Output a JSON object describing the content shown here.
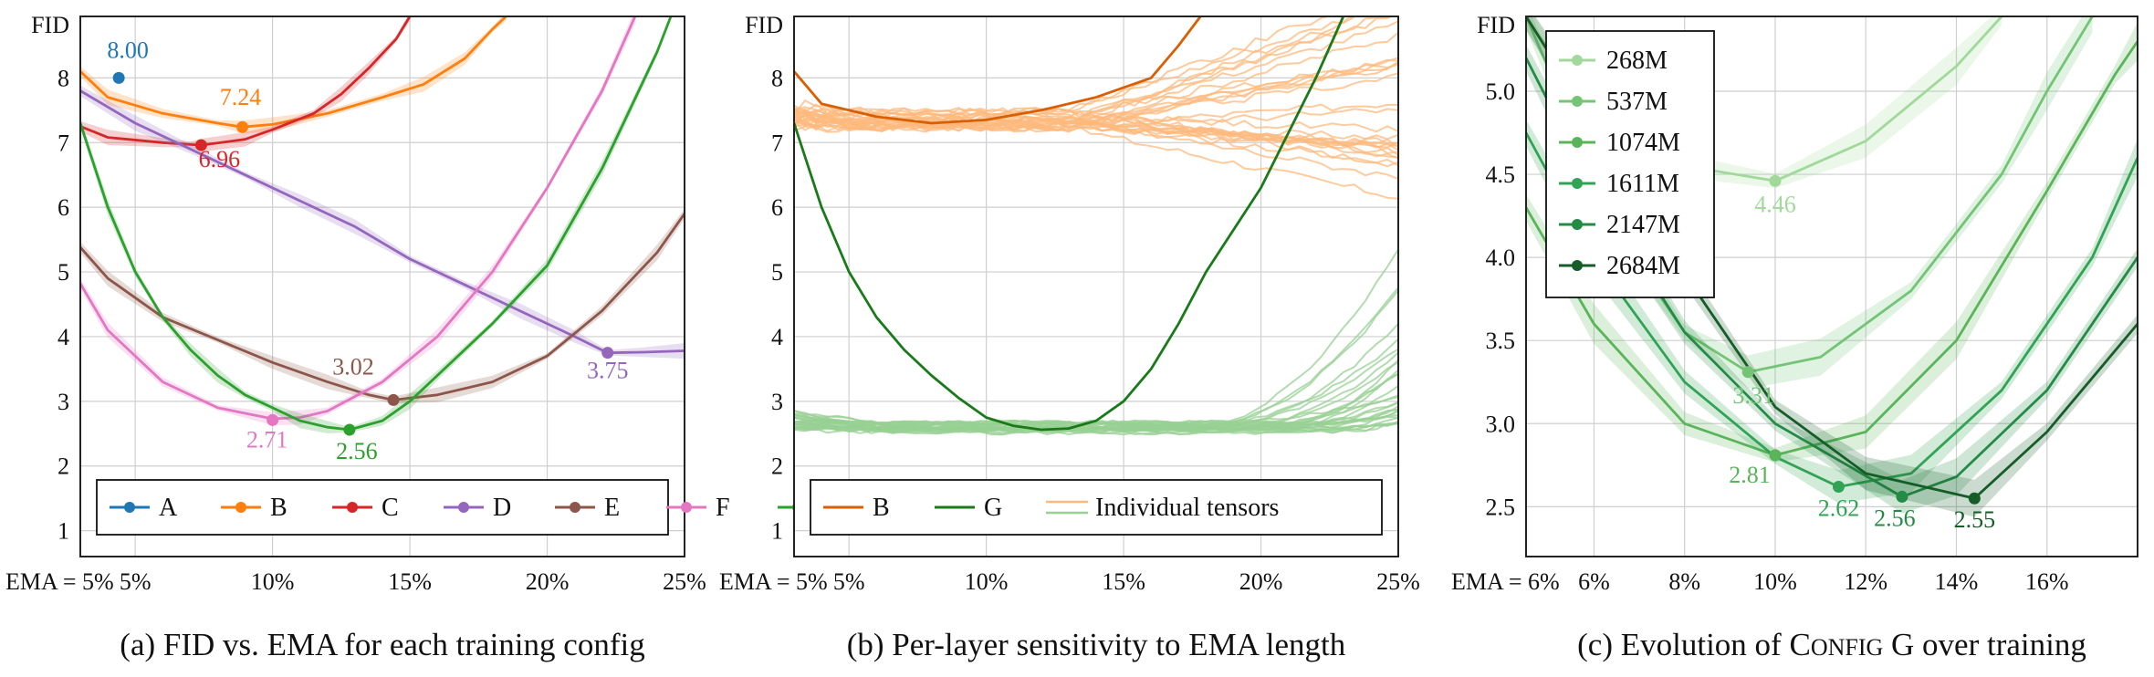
{
  "chart_data": [
    {
      "type": "line",
      "caption": "(a) FID vs. EMA for each training config",
      "ylabel": "FID",
      "x_start_label": "EMA = 5%",
      "xlim": [
        0.03,
        0.25
      ],
      "ylim": [
        0.6,
        8.95
      ],
      "xticks": [
        {
          "v": 0.05,
          "label": "5%"
        },
        {
          "v": 0.1,
          "label": "10%"
        },
        {
          "v": 0.15,
          "label": "15%"
        },
        {
          "v": 0.2,
          "label": "20%"
        },
        {
          "v": 0.25,
          "label": "25%"
        }
      ],
      "yticks": [
        {
          "v": 1,
          "label": "1"
        },
        {
          "v": 2,
          "label": "2"
        },
        {
          "v": 3,
          "label": "3"
        },
        {
          "v": 4,
          "label": "4"
        },
        {
          "v": 5,
          "label": "5"
        },
        {
          "v": 6,
          "label": "6"
        },
        {
          "v": 7,
          "label": "7"
        },
        {
          "v": 8,
          "label": "8"
        }
      ],
      "grid": true,
      "legend_position": "bottom",
      "legend_layout": "row",
      "series": [
        {
          "name": "A",
          "color": "#1f77b4",
          "band": false,
          "points": [],
          "min": {
            "x": 0.044,
            "y": 8.0,
            "label": "8.00",
            "label_dx": 10,
            "label_dy": -22
          }
        },
        {
          "name": "B",
          "color": "#ff7f0e",
          "band": true,
          "points": [
            [
              0.03,
              8.1
            ],
            [
              0.04,
              7.7
            ],
            [
              0.06,
              7.45
            ],
            [
              0.08,
              7.3
            ],
            [
              0.089,
              7.24
            ],
            [
              0.1,
              7.28
            ],
            [
              0.12,
              7.45
            ],
            [
              0.14,
              7.7
            ],
            [
              0.155,
              7.9
            ],
            [
              0.17,
              8.3
            ],
            [
              0.18,
              8.75
            ],
            [
              0.185,
              8.95
            ]
          ],
          "min": {
            "x": 0.089,
            "y": 7.24,
            "label": "7.24",
            "label_dx": -2,
            "label_dy": -24
          }
        },
        {
          "name": "C",
          "color": "#d62728",
          "band": true,
          "points": [
            [
              0.03,
              7.25
            ],
            [
              0.04,
              7.08
            ],
            [
              0.06,
              7.0
            ],
            [
              0.07,
              6.97
            ],
            [
              0.074,
              6.96
            ],
            [
              0.09,
              7.05
            ],
            [
              0.1,
              7.2
            ],
            [
              0.115,
              7.45
            ],
            [
              0.125,
              7.75
            ],
            [
              0.135,
              8.15
            ],
            [
              0.145,
              8.6
            ],
            [
              0.15,
              8.95
            ]
          ],
          "min": {
            "x": 0.074,
            "y": 6.96,
            "label": "6.96",
            "label_dx": 20,
            "label_dy": 24
          }
        },
        {
          "name": "D",
          "color": "#9467bd",
          "band": true,
          "points": [
            [
              0.03,
              7.8
            ],
            [
              0.05,
              7.3
            ],
            [
              0.07,
              6.9
            ],
            [
              0.09,
              6.5
            ],
            [
              0.11,
              6.1
            ],
            [
              0.13,
              5.7
            ],
            [
              0.15,
              5.2
            ],
            [
              0.17,
              4.8
            ],
            [
              0.19,
              4.4
            ],
            [
              0.21,
              4.0
            ],
            [
              0.222,
              3.75
            ],
            [
              0.235,
              3.76
            ],
            [
              0.25,
              3.78
            ]
          ],
          "min": {
            "x": 0.222,
            "y": 3.75,
            "label": "3.75",
            "label_dx": 0,
            "label_dy": 28
          }
        },
        {
          "name": "E",
          "color": "#8c564b",
          "band": true,
          "points": [
            [
              0.03,
              5.38
            ],
            [
              0.04,
              4.9
            ],
            [
              0.06,
              4.3
            ],
            [
              0.08,
              3.95
            ],
            [
              0.1,
              3.6
            ],
            [
              0.12,
              3.3
            ],
            [
              0.135,
              3.1
            ],
            [
              0.144,
              3.02
            ],
            [
              0.16,
              3.1
            ],
            [
              0.18,
              3.3
            ],
            [
              0.2,
              3.7
            ],
            [
              0.22,
              4.4
            ],
            [
              0.24,
              5.3
            ],
            [
              0.25,
              5.9
            ]
          ],
          "min": {
            "x": 0.144,
            "y": 3.02,
            "label": "3.02",
            "label_dx": -44,
            "label_dy": -28
          }
        },
        {
          "name": "F",
          "color": "#e377c2",
          "band": true,
          "points": [
            [
              0.03,
              4.82
            ],
            [
              0.04,
              4.1
            ],
            [
              0.06,
              3.3
            ],
            [
              0.08,
              2.9
            ],
            [
              0.1,
              2.73
            ],
            [
              0.11,
              2.75
            ],
            [
              0.12,
              2.85
            ],
            [
              0.14,
              3.3
            ],
            [
              0.16,
              4.0
            ],
            [
              0.18,
              5.0
            ],
            [
              0.2,
              6.3
            ],
            [
              0.22,
              7.8
            ],
            [
              0.232,
              8.95
            ]
          ],
          "min": {
            "x": 0.1,
            "y": 2.71,
            "label": "2.71",
            "label_dx": -6,
            "label_dy": 30
          }
        },
        {
          "name": "G",
          "color": "#2ca02c",
          "band": true,
          "points": [
            [
              0.03,
              7.3
            ],
            [
              0.04,
              6.0
            ],
            [
              0.05,
              5.0
            ],
            [
              0.06,
              4.3
            ],
            [
              0.07,
              3.8
            ],
            [
              0.08,
              3.4
            ],
            [
              0.09,
              3.1
            ],
            [
              0.1,
              2.9
            ],
            [
              0.11,
              2.7
            ],
            [
              0.12,
              2.6
            ],
            [
              0.128,
              2.56
            ],
            [
              0.14,
              2.7
            ],
            [
              0.15,
              3.0
            ],
            [
              0.16,
              3.4
            ],
            [
              0.18,
              4.2
            ],
            [
              0.2,
              5.1
            ],
            [
              0.22,
              6.6
            ],
            [
              0.24,
              8.4
            ],
            [
              0.245,
              8.95
            ]
          ],
          "min": {
            "x": 0.128,
            "y": 2.56,
            "label": "2.56",
            "label_dx": 8,
            "label_dy": 32
          }
        }
      ]
    },
    {
      "type": "line",
      "caption": "(b) Per-layer sensitivity to EMA length",
      "ylabel": "FID",
      "x_start_label": "EMA = 5%",
      "xlim": [
        0.03,
        0.25
      ],
      "ylim": [
        0.6,
        8.95
      ],
      "xticks": [
        {
          "v": 0.05,
          "label": "5%"
        },
        {
          "v": 0.1,
          "label": "10%"
        },
        {
          "v": 0.15,
          "label": "15%"
        },
        {
          "v": 0.2,
          "label": "20%"
        },
        {
          "v": 0.25,
          "label": "25%"
        }
      ],
      "yticks": [
        {
          "v": 1,
          "label": "1"
        },
        {
          "v": 2,
          "label": "2"
        },
        {
          "v": 3,
          "label": "3"
        },
        {
          "v": 4,
          "label": "4"
        },
        {
          "v": 5,
          "label": "5"
        },
        {
          "v": 6,
          "label": "6"
        },
        {
          "v": 7,
          "label": "7"
        },
        {
          "v": 8,
          "label": "8"
        }
      ],
      "grid": true,
      "legend_position": "bottom",
      "legend_layout": "row",
      "legend": [
        {
          "name": "B",
          "type": "line",
          "color": "#d95f02"
        },
        {
          "name": "G",
          "type": "line",
          "color": "#1a7a1a"
        },
        {
          "name": "Individual tensors",
          "type": "double",
          "colors": [
            "#fdb97d",
            "#98d094"
          ]
        }
      ],
      "series": [
        {
          "name": "B",
          "color": "#d95f02",
          "band": false,
          "points": [
            [
              0.03,
              8.1
            ],
            [
              0.04,
              7.6
            ],
            [
              0.06,
              7.4
            ],
            [
              0.08,
              7.3
            ],
            [
              0.1,
              7.35
            ],
            [
              0.12,
              7.5
            ],
            [
              0.14,
              7.7
            ],
            [
              0.16,
              8.0
            ],
            [
              0.17,
              8.5
            ],
            [
              0.178,
              8.95
            ]
          ]
        },
        {
          "name": "G",
          "color": "#1a7a1a",
          "band": false,
          "points": [
            [
              0.03,
              7.3
            ],
            [
              0.04,
              6.0
            ],
            [
              0.05,
              5.0
            ],
            [
              0.06,
              4.3
            ],
            [
              0.07,
              3.8
            ],
            [
              0.08,
              3.4
            ],
            [
              0.09,
              3.05
            ],
            [
              0.1,
              2.75
            ],
            [
              0.11,
              2.62
            ],
            [
              0.12,
              2.56
            ],
            [
              0.13,
              2.58
            ],
            [
              0.14,
              2.7
            ],
            [
              0.15,
              3.0
            ],
            [
              0.16,
              3.5
            ],
            [
              0.17,
              4.2
            ],
            [
              0.18,
              5.0
            ],
            [
              0.2,
              6.3
            ],
            [
              0.22,
              8.0
            ],
            [
              0.23,
              8.95
            ]
          ]
        }
      ],
      "tensor_groups": [
        {
          "name": "Individual tensors",
          "color": "#fdb97d",
          "base_series": "B",
          "count": 30
        },
        {
          "name": "Individual tensors",
          "color": "#98d094",
          "base_series": "G",
          "count": 30
        }
      ]
    },
    {
      "type": "line",
      "caption_prefix": "(c) Evolution of ",
      "caption_smallcaps_first": "C",
      "caption_smallcaps_rest": "ONFIG",
      "caption_suffix": " G over training",
      "ylabel": "FID",
      "x_start_label": "EMA = 6%",
      "xlim": [
        0.045,
        0.18
      ],
      "ylim": [
        2.2,
        5.45
      ],
      "xticks": [
        {
          "v": 0.06,
          "label": "6%"
        },
        {
          "v": 0.08,
          "label": "8%"
        },
        {
          "v": 0.1,
          "label": "10%"
        },
        {
          "v": 0.12,
          "label": "12%"
        },
        {
          "v": 0.14,
          "label": "14%"
        },
        {
          "v": 0.16,
          "label": "16%"
        }
      ],
      "yticks": [
        {
          "v": 2.5,
          "label": "2.5"
        },
        {
          "v": 3.0,
          "label": "3.0"
        },
        {
          "v": 3.5,
          "label": "3.5"
        },
        {
          "v": 4.0,
          "label": "4.0"
        },
        {
          "v": 4.5,
          "label": "4.5"
        },
        {
          "v": 5.0,
          "label": "5.0"
        }
      ],
      "grid": true,
      "legend_position": "top-left",
      "legend_layout": "column",
      "series": [
        {
          "name": "268M",
          "color": "#a1d99b",
          "band": true,
          "points": [
            [
              0.045,
              5.45
            ],
            [
              0.06,
              4.85
            ],
            [
              0.08,
              4.55
            ],
            [
              0.1,
              4.46
            ],
            [
              0.12,
              4.7
            ],
            [
              0.14,
              5.15
            ],
            [
              0.15,
              5.45
            ]
          ],
          "min": {
            "x": 0.1,
            "y": 4.46,
            "label": "4.46",
            "label_dx": 0,
            "label_dy": 34
          }
        },
        {
          "name": "537M",
          "color": "#74c476",
          "band": true,
          "points": [
            [
              0.045,
              5.45
            ],
            [
              0.06,
              4.5
            ],
            [
              0.07,
              3.95
            ],
            [
              0.08,
              3.55
            ],
            [
              0.094,
              3.31
            ],
            [
              0.11,
              3.4
            ],
            [
              0.13,
              3.8
            ],
            [
              0.15,
              4.5
            ],
            [
              0.16,
              5.0
            ],
            [
              0.17,
              5.45
            ]
          ],
          "min": {
            "x": 0.094,
            "y": 3.31,
            "label": "3.31",
            "label_dx": 6,
            "label_dy": 34
          }
        },
        {
          "name": "1074M",
          "color": "#5ab45a",
          "band": true,
          "points": [
            [
              0.045,
              4.3
            ],
            [
              0.06,
              3.6
            ],
            [
              0.08,
              3.0
            ],
            [
              0.1,
              2.81
            ],
            [
              0.12,
              2.95
            ],
            [
              0.14,
              3.5
            ],
            [
              0.16,
              4.4
            ],
            [
              0.175,
              5.1
            ],
            [
              0.18,
              5.3
            ]
          ],
          "min": {
            "x": 0.1,
            "y": 2.81,
            "label": "2.81",
            "label_dx": -28,
            "label_dy": 30
          }
        },
        {
          "name": "1611M",
          "color": "#31a354",
          "band": true,
          "points": [
            [
              0.045,
              4.75
            ],
            [
              0.06,
              4.0
            ],
            [
              0.08,
              3.25
            ],
            [
              0.1,
              2.8
            ],
            [
              0.114,
              2.62
            ],
            [
              0.13,
              2.7
            ],
            [
              0.15,
              3.2
            ],
            [
              0.17,
              4.0
            ],
            [
              0.18,
              4.6
            ]
          ],
          "min": {
            "x": 0.114,
            "y": 2.62,
            "label": "2.62",
            "label_dx": 0,
            "label_dy": 32
          }
        },
        {
          "name": "2147M",
          "color": "#238b45",
          "band": true,
          "points": [
            [
              0.045,
              5.2
            ],
            [
              0.06,
              4.4
            ],
            [
              0.08,
              3.55
            ],
            [
              0.1,
              3.0
            ],
            [
              0.128,
              2.56
            ],
            [
              0.14,
              2.68
            ],
            [
              0.16,
              3.2
            ],
            [
              0.18,
              4.0
            ]
          ],
          "min": {
            "x": 0.128,
            "y": 2.56,
            "label": "2.56",
            "label_dx": -8,
            "label_dy": 32
          }
        },
        {
          "name": "2684M",
          "color": "#155d27",
          "band": true,
          "points": [
            [
              0.045,
              5.45
            ],
            [
              0.06,
              4.8
            ],
            [
              0.08,
              3.9
            ],
            [
              0.1,
              3.1
            ],
            [
              0.12,
              2.7
            ],
            [
              0.144,
              2.55
            ],
            [
              0.16,
              2.95
            ],
            [
              0.18,
              3.6
            ]
          ],
          "min": {
            "x": 0.144,
            "y": 2.55,
            "label": "2.55",
            "label_dx": 0,
            "label_dy": 32
          }
        }
      ]
    }
  ]
}
